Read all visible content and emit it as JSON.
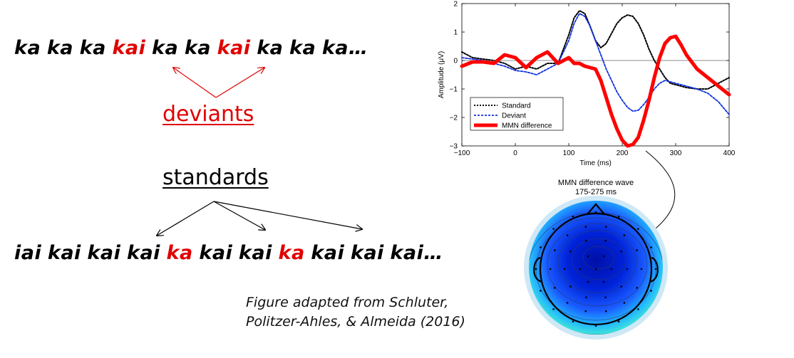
{
  "sequence_top": [
    {
      "text": "ka",
      "deviant": false
    },
    {
      "text": "ka",
      "deviant": false
    },
    {
      "text": "ka",
      "deviant": false
    },
    {
      "text": "kai",
      "deviant": true
    },
    {
      "text": "ka",
      "deviant": false
    },
    {
      "text": "ka",
      "deviant": false
    },
    {
      "text": "kai",
      "deviant": true
    },
    {
      "text": "ka",
      "deviant": false
    },
    {
      "text": "ka",
      "deviant": false
    },
    {
      "text": "ka…",
      "deviant": false
    }
  ],
  "sequence_bottom": [
    {
      "text": "iai",
      "deviant": false
    },
    {
      "text": "kai",
      "deviant": false
    },
    {
      "text": "kai",
      "deviant": false
    },
    {
      "text": "kai",
      "deviant": false
    },
    {
      "text": "ka",
      "deviant": true
    },
    {
      "text": "kai",
      "deviant": false
    },
    {
      "text": "kai",
      "deviant": false
    },
    {
      "text": "ka",
      "deviant": true
    },
    {
      "text": "kai",
      "deviant": false
    },
    {
      "text": "kai",
      "deviant": false
    },
    {
      "text": "kai…",
      "deviant": false
    }
  ],
  "labels": {
    "deviants": "deviants",
    "standards": "standards"
  },
  "caption": {
    "line1": "Figure adapted from Schluter,",
    "line2": "Politzer-Ahles, & Almeida (2016)"
  },
  "colors": {
    "deviant_text": "#e00000",
    "standard": "#000000",
    "deviant": "#1030e0",
    "mmn": "#ff0000"
  },
  "topomap": {
    "title": "MMN difference wave",
    "subtitle": "175-275 ms"
  },
  "chart_data": {
    "type": "line",
    "xlabel": "Time (ms)",
    "ylabel": "Amplitude (μV)",
    "xlim": [
      -100,
      400
    ],
    "ylim": [
      -3,
      2
    ],
    "xticks": [
      -100,
      0,
      100,
      200,
      300,
      400
    ],
    "yticks": [
      -3,
      -2,
      -1,
      0,
      1,
      2
    ],
    "legend_position": "bottom-left",
    "series": [
      {
        "name": "Standard",
        "style": "dotted",
        "color": "#000000",
        "x": [
          -100,
          -80,
          -60,
          -40,
          -20,
          0,
          20,
          40,
          60,
          80,
          100,
          110,
          120,
          130,
          140,
          150,
          160,
          170,
          180,
          190,
          200,
          210,
          220,
          230,
          240,
          250,
          260,
          270,
          280,
          290,
          300,
          320,
          340,
          360,
          380,
          400
        ],
        "y": [
          0.3,
          0.1,
          0.05,
          0.0,
          -0.1,
          -0.3,
          -0.2,
          -0.3,
          -0.1,
          -0.1,
          0.9,
          1.5,
          1.75,
          1.65,
          1.2,
          0.7,
          0.45,
          0.6,
          0.95,
          1.3,
          1.5,
          1.6,
          1.55,
          1.3,
          0.9,
          0.4,
          0.0,
          -0.3,
          -0.6,
          -0.8,
          -0.85,
          -0.95,
          -1.0,
          -1.0,
          -0.8,
          -0.6
        ]
      },
      {
        "name": "Deviant",
        "style": "dashed",
        "color": "#1030e0",
        "x": [
          -100,
          -80,
          -60,
          -40,
          -20,
          0,
          20,
          40,
          60,
          80,
          100,
          110,
          120,
          130,
          140,
          150,
          160,
          170,
          180,
          190,
          200,
          210,
          220,
          230,
          240,
          250,
          260,
          270,
          280,
          290,
          300,
          320,
          340,
          360,
          380,
          400
        ],
        "y": [
          0.1,
          0.05,
          0.0,
          -0.1,
          -0.2,
          -0.35,
          -0.4,
          -0.5,
          -0.3,
          -0.1,
          0.7,
          1.3,
          1.65,
          1.55,
          1.2,
          0.7,
          0.2,
          -0.3,
          -0.7,
          -1.1,
          -1.4,
          -1.65,
          -1.78,
          -1.75,
          -1.55,
          -1.3,
          -1.0,
          -0.8,
          -0.7,
          -0.75,
          -0.8,
          -0.9,
          -1.0,
          -1.15,
          -1.45,
          -1.9
        ]
      },
      {
        "name": "MMN difference",
        "style": "solid",
        "color": "#ff0000",
        "x": [
          -100,
          -80,
          -60,
          -40,
          -20,
          0,
          20,
          40,
          60,
          80,
          100,
          110,
          120,
          130,
          140,
          150,
          160,
          170,
          180,
          190,
          200,
          210,
          220,
          230,
          240,
          250,
          260,
          270,
          280,
          290,
          300,
          310,
          320,
          340,
          360,
          380,
          400
        ],
        "y": [
          -0.2,
          -0.05,
          -0.05,
          -0.1,
          0.2,
          0.1,
          -0.25,
          0.1,
          0.3,
          -0.1,
          0.1,
          -0.1,
          -0.1,
          -0.2,
          -0.25,
          -0.3,
          -0.7,
          -1.3,
          -1.9,
          -2.4,
          -2.8,
          -3.0,
          -2.95,
          -2.7,
          -2.1,
          -1.4,
          -0.6,
          0.1,
          0.6,
          0.8,
          0.85,
          0.55,
          0.2,
          -0.3,
          -0.6,
          -0.9,
          -1.2
        ]
      }
    ]
  }
}
